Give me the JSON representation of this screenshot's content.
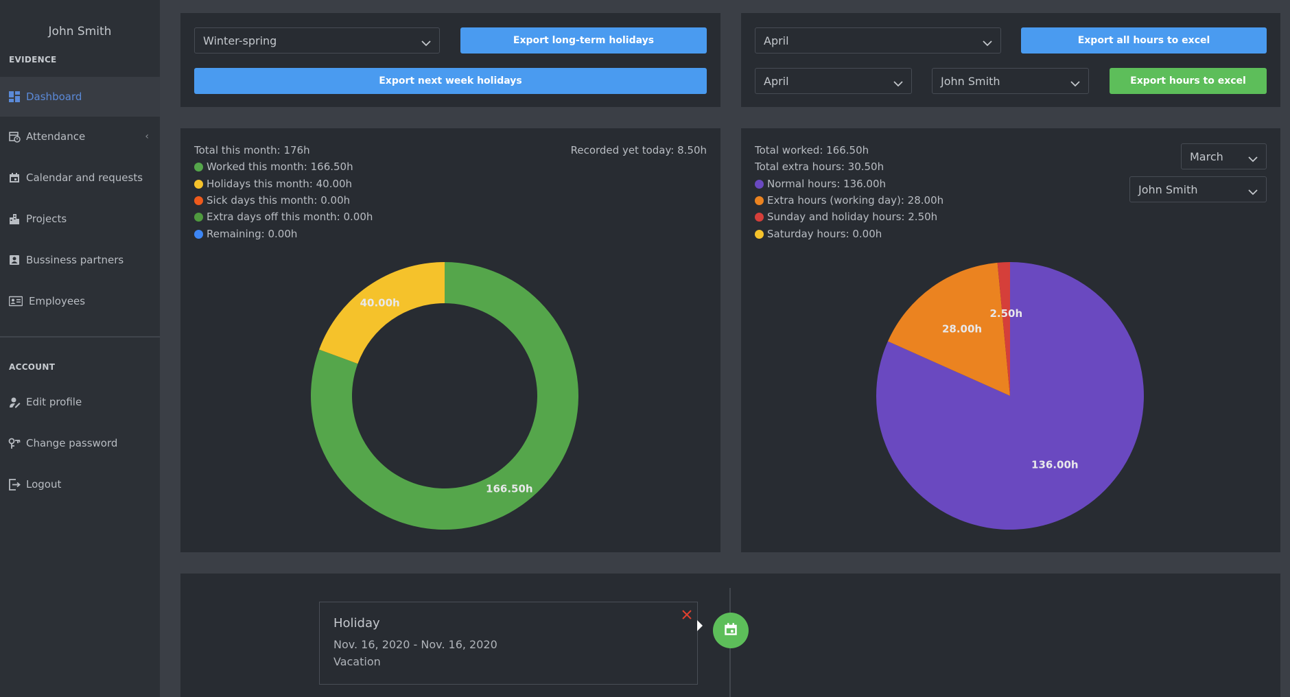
{
  "user": {
    "name": "John Smith"
  },
  "sidebar": {
    "section_evidence": "EVIDENCE",
    "section_account": "ACCOUNT",
    "evidence_items": [
      {
        "label": "Dashboard",
        "icon": "dashboard-icon",
        "active": true
      },
      {
        "label": "Attendance",
        "icon": "attendance-icon",
        "expandable": true
      },
      {
        "label": "Calendar and requests",
        "icon": "calendar-icon"
      },
      {
        "label": "Projects",
        "icon": "projects-icon"
      },
      {
        "label": "Bussiness partners",
        "icon": "partners-icon"
      },
      {
        "label": "Employees",
        "icon": "employees-icon"
      }
    ],
    "account_items": [
      {
        "label": "Edit profile",
        "icon": "edit-profile-icon"
      },
      {
        "label": "Change password",
        "icon": "key-icon"
      },
      {
        "label": "Logout",
        "icon": "logout-icon"
      }
    ]
  },
  "holidays_panel": {
    "period_select": "Winter-spring",
    "export_long_term": "Export long-term holidays",
    "export_next_week": "Export next week holidays"
  },
  "hours_export_panel": {
    "month_select_all": "April",
    "export_all": "Export all hours to excel",
    "month_select": "April",
    "employee_select": "John Smith",
    "export_hours": "Export hours to excel"
  },
  "month_summary": {
    "total": "Total this month: 176h",
    "recorded_today": "Recorded yet today: 8.50h",
    "legend": [
      {
        "label": "Worked this month: 166.50h",
        "color": "#55a64b"
      },
      {
        "label": "Holidays this month: 40.00h",
        "color": "#f5c22b"
      },
      {
        "label": "Sick days this month: 0.00h",
        "color": "#ee5a1c"
      },
      {
        "label": "Extra days off this month: 0.00h",
        "color": "#4f9a3f"
      },
      {
        "label": "Remaining: 0.00h",
        "color": "#3d86f4"
      }
    ]
  },
  "hours_summary": {
    "total_worked": "Total worked: 166.50h",
    "total_extra": "Total extra hours: 30.50h",
    "month_select": "March",
    "employee_select": "John Smith",
    "legend": [
      {
        "label": "Normal hours: 136.00h",
        "color": "#6a49c0"
      },
      {
        "label": "Extra hours (working day): 28.00h",
        "color": "#eb8320"
      },
      {
        "label": "Sunday and holiday hours: 2.50h",
        "color": "#d53f3a"
      },
      {
        "label": "Saturday hours: 0.00h",
        "color": "#f5c22b"
      }
    ]
  },
  "chart_data": [
    {
      "type": "pie",
      "variant": "donut",
      "labels": [
        "Worked",
        "Holidays"
      ],
      "values": [
        166.5,
        40.0
      ],
      "data_labels": [
        "166.50h",
        "40.00h"
      ],
      "colors": [
        "#55a64b",
        "#f5c22b"
      ]
    },
    {
      "type": "pie",
      "labels": [
        "Normal hours",
        "Extra hours (working day)",
        "Sunday and holiday hours"
      ],
      "values": [
        136.0,
        28.0,
        2.5
      ],
      "data_labels": [
        "136.00h",
        "28.00h",
        "2.50h"
      ],
      "colors": [
        "#6a49c0",
        "#eb8320",
        "#d53f3a"
      ]
    }
  ],
  "timeline": {
    "title": "Holiday",
    "dates": "Nov. 16, 2020 - Nov. 16, 2020",
    "type": "Vacation",
    "close_icon": "close-icon",
    "event_icon": "calendar-icon"
  }
}
